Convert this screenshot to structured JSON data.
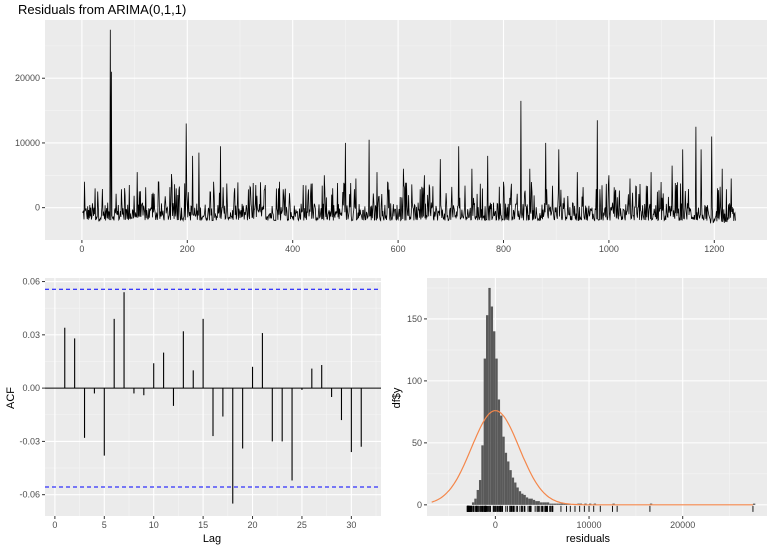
{
  "chart_data": [
    {
      "type": "line",
      "title": "Residuals from ARIMA(0,1,1)",
      "xlabel": "",
      "ylabel": "",
      "xlim": [
        -70,
        1300
      ],
      "ylim": [
        -5000,
        29000
      ],
      "xticks": [
        0,
        200,
        400,
        600,
        800,
        1000,
        1200
      ],
      "yticks": [
        0,
        10000,
        20000
      ],
      "grid": true,
      "n_points": 1240,
      "baseline_range": [
        -2000,
        1500
      ],
      "spikes": [
        {
          "x": 5,
          "y": 4000
        },
        {
          "x": 30,
          "y": 2500
        },
        {
          "x": 54,
          "y": 27500
        },
        {
          "x": 56,
          "y": 21000
        },
        {
          "x": 90,
          "y": 3500
        },
        {
          "x": 105,
          "y": 5500
        },
        {
          "x": 145,
          "y": 4000
        },
        {
          "x": 170,
          "y": 5200
        },
        {
          "x": 198,
          "y": 13000
        },
        {
          "x": 210,
          "y": 8000
        },
        {
          "x": 222,
          "y": 8500
        },
        {
          "x": 250,
          "y": 4000
        },
        {
          "x": 263,
          "y": 9500
        },
        {
          "x": 290,
          "y": 3000
        },
        {
          "x": 330,
          "y": 3500
        },
        {
          "x": 375,
          "y": 4000
        },
        {
          "x": 420,
          "y": 3500
        },
        {
          "x": 460,
          "y": 5000
        },
        {
          "x": 500,
          "y": 10000
        },
        {
          "x": 520,
          "y": 4500
        },
        {
          "x": 545,
          "y": 10500
        },
        {
          "x": 560,
          "y": 5500
        },
        {
          "x": 580,
          "y": 4000
        },
        {
          "x": 610,
          "y": 6000
        },
        {
          "x": 650,
          "y": 5000
        },
        {
          "x": 680,
          "y": 7500
        },
        {
          "x": 715,
          "y": 9500
        },
        {
          "x": 740,
          "y": 6000
        },
        {
          "x": 770,
          "y": 8000
        },
        {
          "x": 800,
          "y": 4000
        },
        {
          "x": 833,
          "y": 16500
        },
        {
          "x": 850,
          "y": 6000
        },
        {
          "x": 880,
          "y": 10000
        },
        {
          "x": 905,
          "y": 9000
        },
        {
          "x": 940,
          "y": 5500
        },
        {
          "x": 978,
          "y": 13500
        },
        {
          "x": 1000,
          "y": 5000
        },
        {
          "x": 1040,
          "y": 4500
        },
        {
          "x": 1080,
          "y": 5500
        },
        {
          "x": 1120,
          "y": 6500
        },
        {
          "x": 1140,
          "y": 9000
        },
        {
          "x": 1165,
          "y": 12500
        },
        {
          "x": 1175,
          "y": 9000
        },
        {
          "x": 1195,
          "y": 11000
        },
        {
          "x": 1215,
          "y": 6000
        },
        {
          "x": 1232,
          "y": 4500
        }
      ]
    },
    {
      "type": "bar",
      "xlabel": "Lag",
      "ylabel": "ACF",
      "xlim": [
        -1,
        33
      ],
      "ylim": [
        -0.072,
        0.062
      ],
      "xticks": [
        0,
        5,
        10,
        15,
        20,
        25,
        30
      ],
      "yticks": [
        -0.06,
        -0.03,
        0.0,
        0.03,
        0.06
      ],
      "ytick_labels": [
        "-0.06",
        "-0.03",
        "0.00",
        "0.03",
        "0.06"
      ],
      "confidence_bound": 0.0557,
      "lags": [
        1,
        2,
        3,
        4,
        5,
        6,
        7,
        8,
        9,
        10,
        11,
        12,
        13,
        14,
        15,
        16,
        17,
        18,
        19,
        20,
        21,
        22,
        23,
        24,
        25,
        26,
        27,
        28,
        29,
        30,
        31
      ],
      "values": [
        0.034,
        0.028,
        -0.028,
        -0.003,
        -0.038,
        0.039,
        0.054,
        -0.003,
        -0.004,
        0.014,
        0.02,
        -0.01,
        0.032,
        0.01,
        0.039,
        -0.027,
        -0.016,
        -0.065,
        -0.034,
        0.012,
        0.031,
        -0.03,
        -0.03,
        -0.052,
        -0.001,
        0.011,
        0.013,
        -0.005,
        -0.018,
        -0.036,
        -0.033
      ]
    },
    {
      "type": "bar",
      "xlabel": "residuals",
      "ylabel": "df$y",
      "xlim": [
        -7300,
        29000
      ],
      "ylim": [
        -9,
        183
      ],
      "xticks": [
        0,
        10000,
        20000
      ],
      "yticks": [
        0,
        50,
        100,
        150
      ],
      "bin_width": 250,
      "bins_start": -2500,
      "counts": [
        2,
        5,
        12,
        20,
        48,
        118,
        153,
        175,
        160,
        140,
        118,
        85,
        72,
        55,
        42,
        35,
        28,
        22,
        18,
        14,
        11,
        9,
        8,
        6,
        5,
        5,
        4,
        3,
        3,
        2,
        2,
        2,
        2,
        1,
        1,
        1,
        1,
        1,
        1,
        1,
        1,
        1,
        0,
        0,
        0,
        1,
        1,
        0,
        1,
        0,
        1,
        0,
        1
      ],
      "outlier_bins": [
        {
          "x": 12500,
          "count": 1
        },
        {
          "x": 16500,
          "count": 1
        },
        {
          "x": 27500,
          "count": 1
        }
      ],
      "density_curve": {
        "mean": 0,
        "sd": 2550,
        "peak": 76,
        "range": [
          -6800,
          27500
        ]
      },
      "rug_range": [
        -3000,
        6500
      ],
      "rug_extras": [
        7000,
        7600,
        8000,
        8500,
        9000,
        9500,
        10000,
        10500,
        11200,
        12500,
        13000,
        16500,
        27500
      ]
    }
  ]
}
